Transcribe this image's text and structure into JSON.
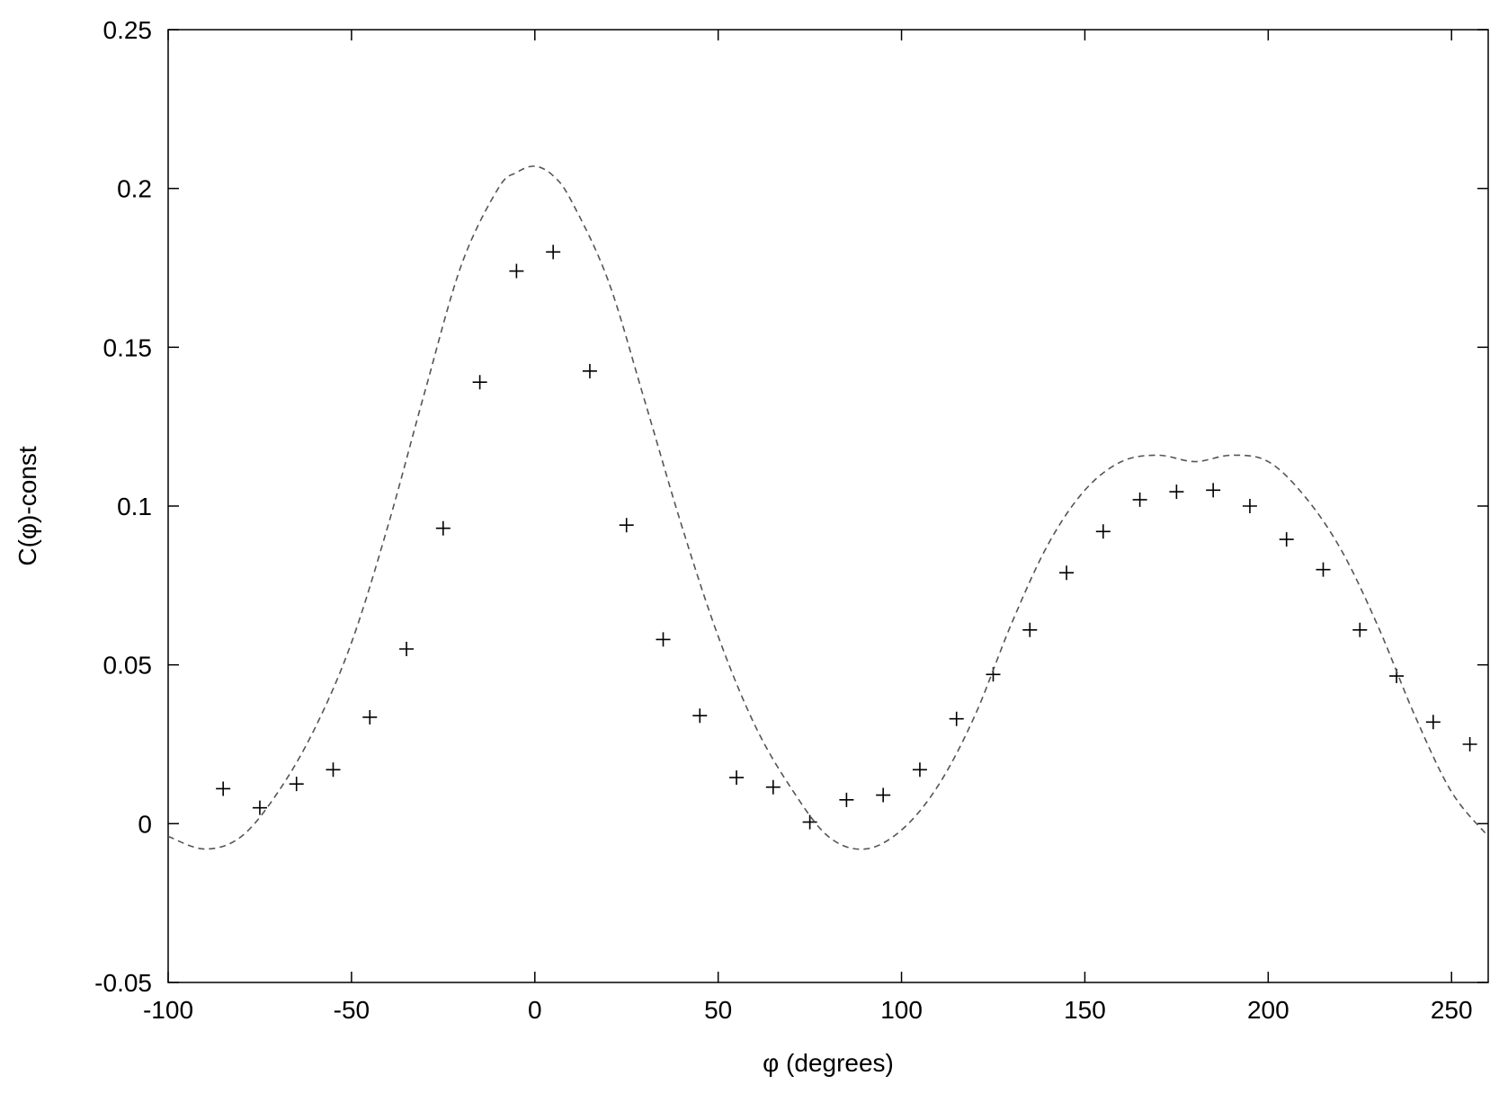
{
  "chart_data": {
    "type": "scatter",
    "title": "",
    "xlabel": "φ (degrees)",
    "ylabel": "C(φ)-const",
    "xlim": [
      -100,
      260
    ],
    "ylim": [
      -0.05,
      0.25
    ],
    "xticks": [
      -100,
      -50,
      0,
      50,
      100,
      150,
      200,
      250
    ],
    "xtick_labels": [
      "-100",
      "-50",
      "0",
      "50",
      "100",
      "150",
      "200",
      "250"
    ],
    "yticks": [
      -0.05,
      0,
      0.05,
      0.1,
      0.15,
      0.2,
      0.25
    ],
    "ytick_labels": [
      "-0.05",
      "0",
      "0.05",
      "0.1",
      "0.15",
      "0.2",
      "0.25"
    ],
    "grid": false,
    "legend": "none",
    "series": [
      {
        "kind": "points",
        "marker": "plus",
        "color": "#000000",
        "x": [
          -85,
          -75,
          -65,
          -55,
          -45,
          -35,
          -25,
          -15,
          -5,
          5,
          15,
          25,
          35,
          45,
          55,
          65,
          75,
          85,
          95,
          105,
          115,
          125,
          135,
          145,
          155,
          165,
          175,
          185,
          195,
          205,
          215,
          225,
          235,
          245,
          255
        ],
        "y": [
          0.011,
          0.005,
          0.0125,
          0.017,
          0.0335,
          0.055,
          0.093,
          0.139,
          0.174,
          0.18,
          0.1425,
          0.094,
          0.058,
          0.034,
          0.0145,
          0.0115,
          0.0005,
          0.0075,
          0.009,
          0.017,
          0.033,
          0.047,
          0.061,
          0.079,
          0.092,
          0.102,
          0.1045,
          0.105,
          0.1,
          0.0895,
          0.08,
          0.061,
          0.0465,
          0.032,
          0.025
        ]
      },
      {
        "kind": "curve",
        "style": "dashed",
        "color": "#555555",
        "x": [
          -100,
          -90,
          -80,
          -70,
          -60,
          -50,
          -40,
          -30,
          -20,
          -10,
          -5,
          0,
          5,
          10,
          20,
          30,
          40,
          50,
          60,
          70,
          80,
          90,
          100,
          110,
          120,
          130,
          140,
          150,
          160,
          170,
          180,
          190,
          200,
          210,
          220,
          230,
          240,
          250,
          260
        ],
        "y": [
          -0.004,
          -0.008,
          -0.004,
          0.01,
          0.03,
          0.057,
          0.094,
          0.136,
          0.176,
          0.2,
          0.205,
          0.207,
          0.204,
          0.196,
          0.171,
          0.133,
          0.094,
          0.059,
          0.031,
          0.011,
          -0.004,
          -0.008,
          -0.002,
          0.012,
          0.034,
          0.063,
          0.088,
          0.105,
          0.114,
          0.116,
          0.114,
          0.116,
          0.114,
          0.103,
          0.086,
          0.062,
          0.034,
          0.01,
          -0.004
        ]
      }
    ]
  }
}
